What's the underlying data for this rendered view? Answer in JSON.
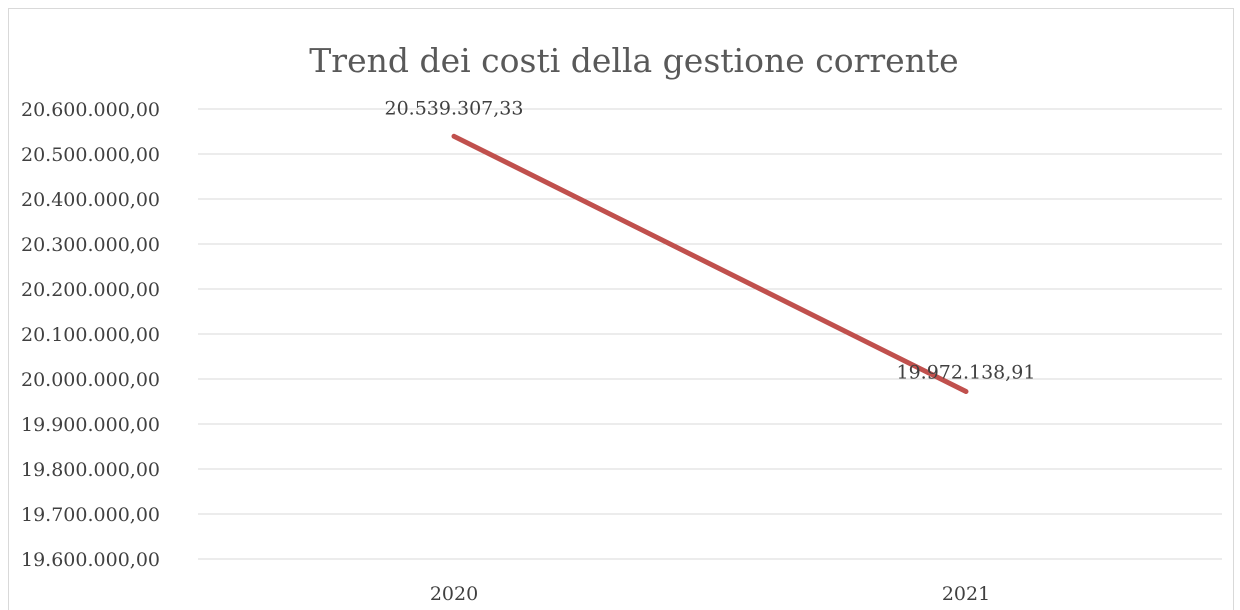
{
  "chart_data": {
    "type": "line",
    "title": "Trend dei costi della gestione corrente",
    "xlabel": "",
    "ylabel": "",
    "categories": [
      "2020",
      "2021"
    ],
    "series": [
      {
        "values": [
          20539307.33,
          19972138.91
        ],
        "data_labels": [
          "20.539.307,33",
          "19.972.138,91"
        ],
        "color": "#c0504d"
      }
    ],
    "ylim": [
      19600000,
      20600000
    ],
    "y_ticks": [
      19600000,
      19700000,
      19800000,
      19900000,
      20000000,
      20100000,
      20200000,
      20300000,
      20400000,
      20500000,
      20600000
    ],
    "y_tick_labels": [
      "19.600.000,00",
      "19.700.000,00",
      "19.800.000,00",
      "19.900.000,00",
      "20.000.000,00",
      "20.100.000,00",
      "20.200.000,00",
      "20.300.000,00",
      "20.400.000,00",
      "20.500.000,00",
      "20.600.000,00"
    ],
    "grid": true,
    "legend": "none"
  }
}
